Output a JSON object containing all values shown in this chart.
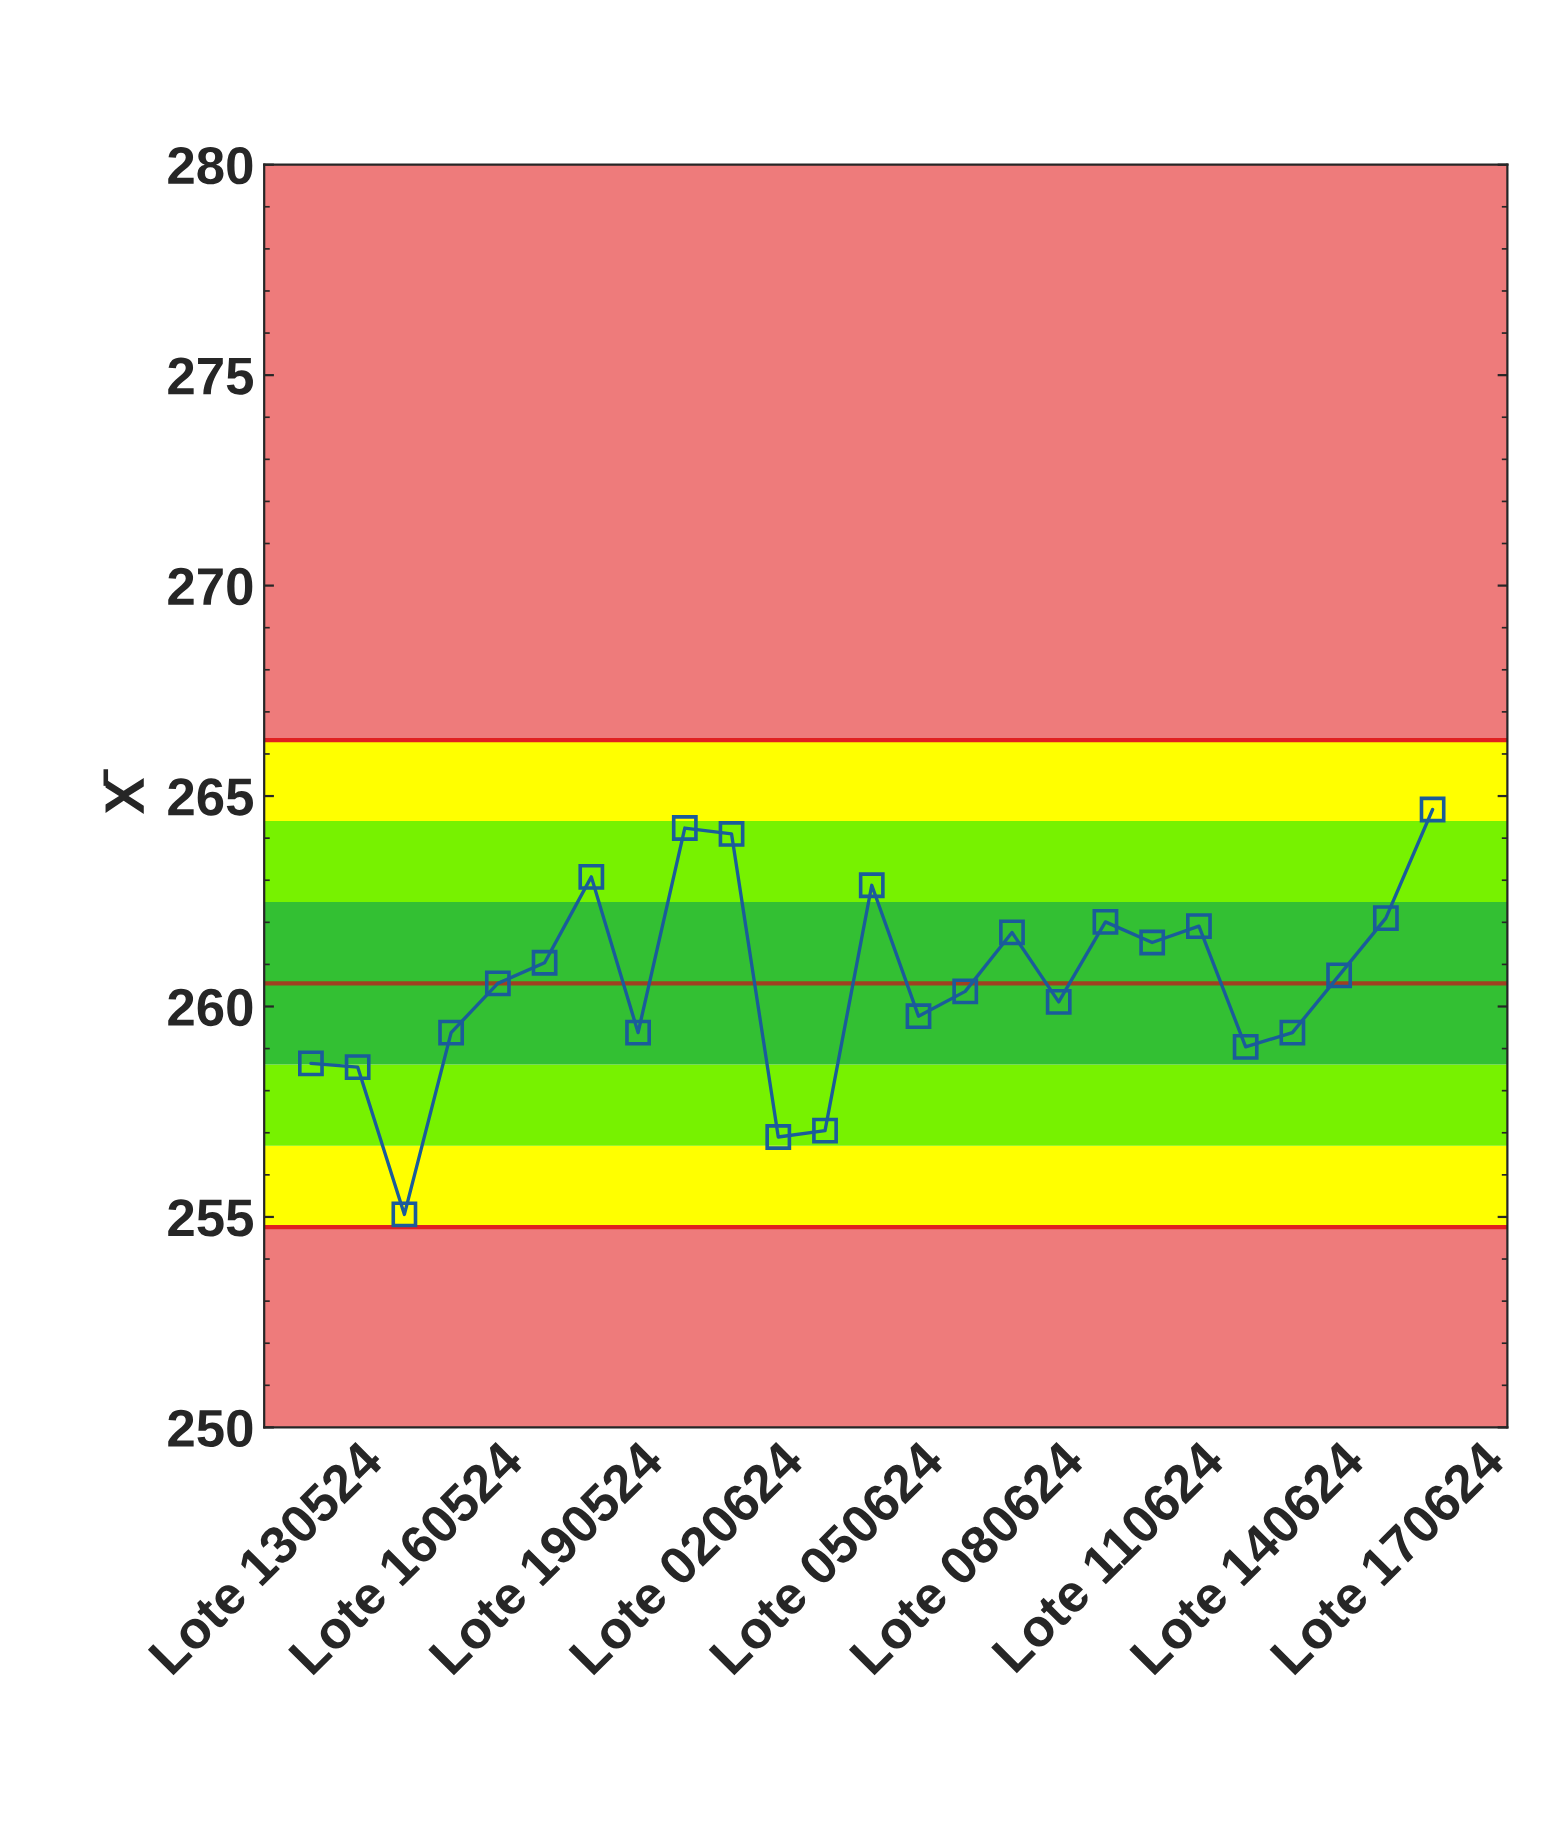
{
  "chart_data": {
    "type": "line",
    "ylabel": "X̄",
    "categories": [
      null,
      "Lote 130524",
      null,
      null,
      "Lote 160524",
      null,
      null,
      "Lote 190524",
      null,
      null,
      "Lote 020624",
      null,
      null,
      "Lote 050624",
      null,
      null,
      "Lote 080624",
      null,
      null,
      "Lote 110624",
      null,
      null,
      "Lote 140624",
      null,
      null,
      "Lote 170624"
    ],
    "series": [
      {
        "color": "#1a5c9a",
        "values": [
          258.65,
          258.56,
          255.06,
          259.38,
          260.55,
          261.04,
          263.08,
          259.38,
          264.24,
          264.1,
          256.9,
          257.05,
          262.88,
          259.77,
          260.36,
          261.76,
          260.11,
          262.01,
          261.52,
          261.91,
          259.04,
          259.38,
          260.74,
          262.1,
          264.68,
          null
        ]
      }
    ],
    "marker": "square",
    "line_style": "solid",
    "ylim": [
      250,
      280
    ],
    "yticks": [
      250,
      255,
      260,
      265,
      270,
      275,
      280
    ],
    "grid": false,
    "legend": false,
    "bands": [
      {
        "axis": "y",
        "from": 250,
        "to": 254.76,
        "color": "#ee7b7b"
      },
      {
        "axis": "y",
        "from": 254.76,
        "to": 256.69,
        "color": "#ffff00"
      },
      {
        "axis": "y",
        "from": 256.69,
        "to": 258.62,
        "color": "#77f200"
      },
      {
        "axis": "y",
        "from": 258.62,
        "to": 262.48,
        "color": "#33c033"
      },
      {
        "axis": "y",
        "from": 262.48,
        "to": 264.41,
        "color": "#77f200"
      },
      {
        "axis": "y",
        "from": 264.41,
        "to": 266.33,
        "color": "#ffff00"
      },
      {
        "axis": "y",
        "from": 266.33,
        "to": 280,
        "color": "#ee7b7b"
      }
    ],
    "ref_lines": [
      {
        "axis": "y",
        "value": 254.76,
        "color": "#e02020"
      },
      {
        "axis": "y",
        "value": 260.55,
        "color": "#a04020"
      },
      {
        "axis": "y",
        "value": 266.33,
        "color": "#e02020"
      }
    ]
  }
}
